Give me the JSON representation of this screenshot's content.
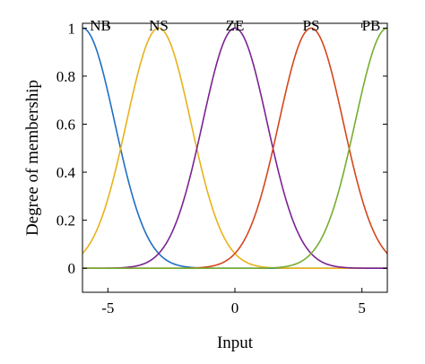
{
  "chart_data": {
    "type": "line",
    "title": "",
    "xlabel": "Input",
    "ylabel": "Degree of membership",
    "xlim": [
      -6,
      6
    ],
    "ylim": [
      -0.1,
      1.02
    ],
    "xticks": [
      -5,
      0,
      5
    ],
    "yticks": [
      0,
      0.2,
      0.4,
      0.6,
      0.8,
      1
    ],
    "xtick_labels": [
      "-5",
      "0",
      "5"
    ],
    "ytick_labels": [
      "0",
      "0.2",
      "0.4",
      "0.6",
      "0.8",
      "1"
    ],
    "grid": false,
    "legend": "none",
    "membership_function": "gaussian",
    "series": [
      {
        "name": "NB",
        "center": -6,
        "sigma": 1.27,
        "color": "#1f6fc5"
      },
      {
        "name": "NS",
        "center": -3,
        "sigma": 1.27,
        "color": "#e8b21a"
      },
      {
        "name": "ZE",
        "center": 0,
        "sigma": 1.27,
        "color": "#7b2393"
      },
      {
        "name": "PS",
        "center": 3,
        "sigma": 1.27,
        "color": "#d5461d"
      },
      {
        "name": "PB",
        "center": 6,
        "sigma": 1.27,
        "color": "#76ad30"
      }
    ]
  }
}
